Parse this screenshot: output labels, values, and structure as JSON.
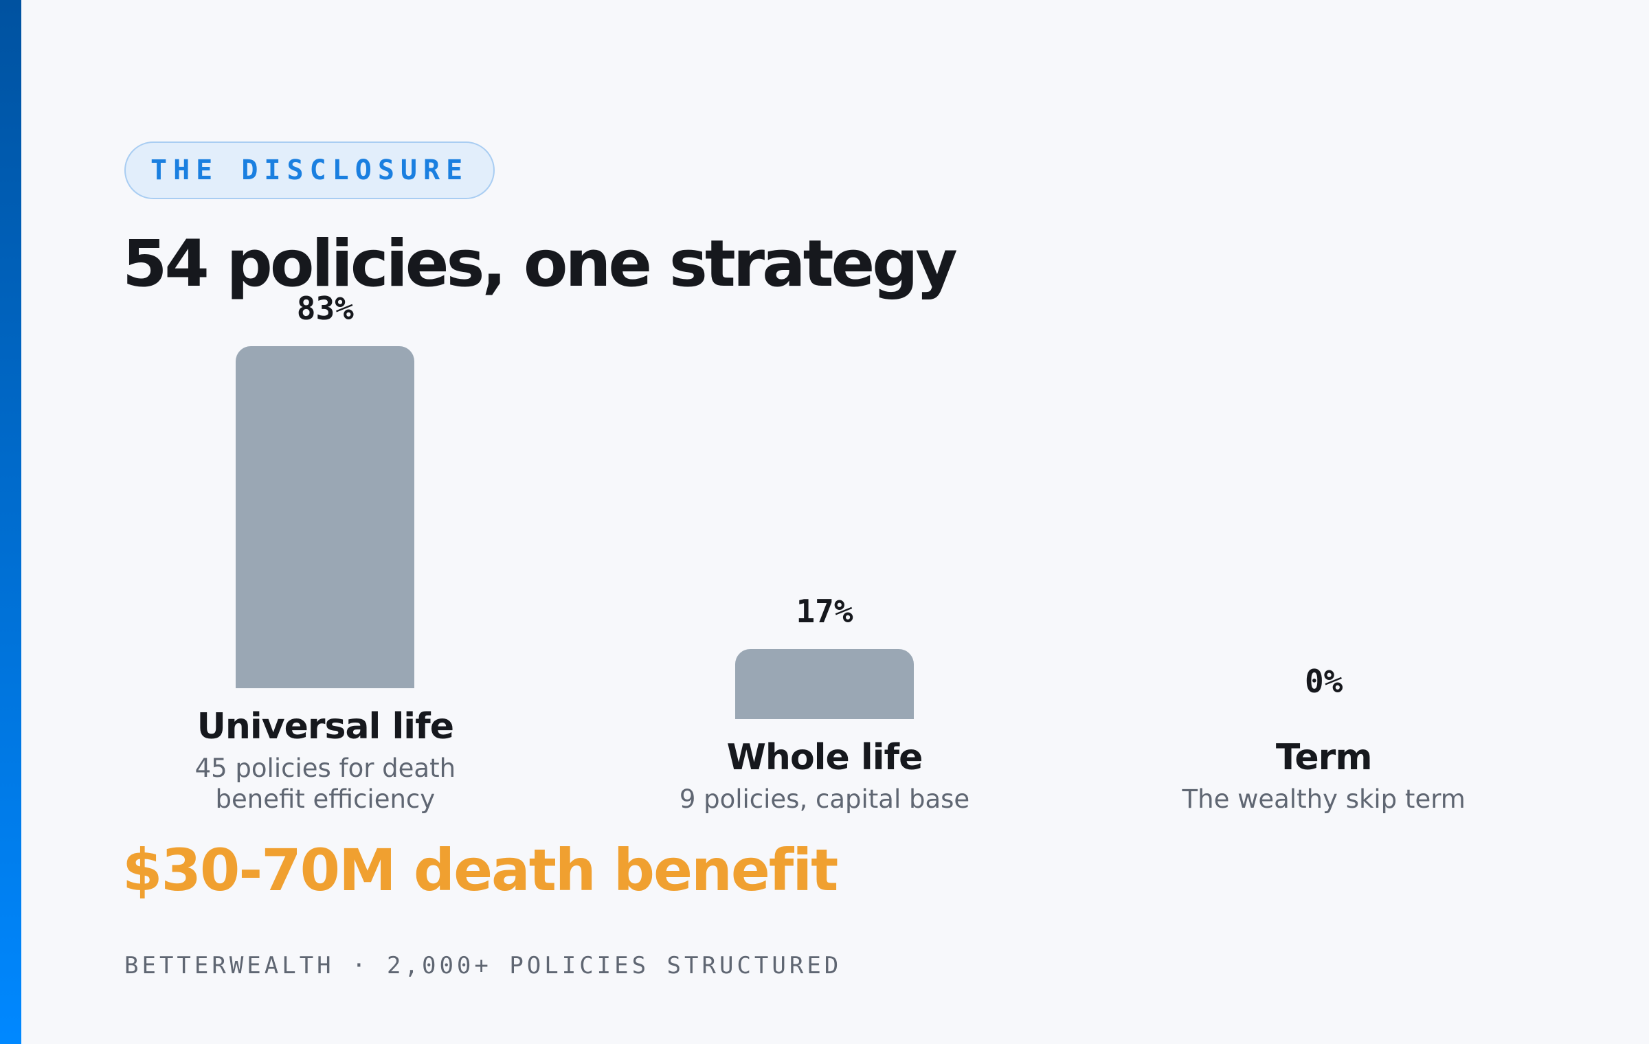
{
  "eyebrow": "THE DISCLOSURE",
  "chart_data": {
    "type": "bar",
    "title": "54 policies, one strategy",
    "categories": [
      "Universal life",
      "Whole life",
      "Term"
    ],
    "descriptions": [
      "45 policies for death benefit efficiency",
      "9 policies, capital base",
      "The wealthy skip term"
    ],
    "values": [
      83,
      17,
      0
    ],
    "value_labels": [
      "83%",
      "17%",
      "0%"
    ],
    "color": "#9aa7b4"
  },
  "highlight": "$30-70M death benefit",
  "footer": "BETTERWEALTH · 2,000+ POLICIES STRUCTURED"
}
